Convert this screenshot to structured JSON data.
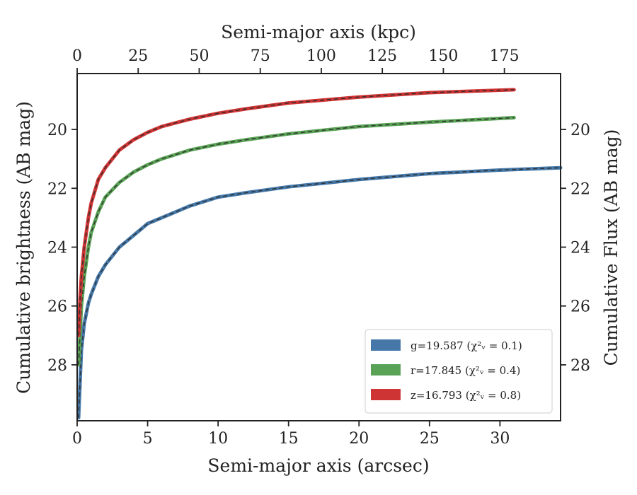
{
  "chart_data": {
    "type": "line",
    "title": "",
    "xlabel": "Semi-major axis (arcsec)",
    "ylabel": "Cumulative brightness (AB mag)",
    "top_xlabel": "Semi-major axis (kpc)",
    "right_ylabel": "Cumulative Flux (AB mag)",
    "xlim": [
      0,
      34.3
    ],
    "ylim": [
      29.9,
      18.1
    ],
    "y_inverted": true,
    "top_xlim": [
      0,
      198
    ],
    "x_ticks": [
      "0",
      "5",
      "10",
      "15",
      "20",
      "25",
      "30"
    ],
    "y_ticks": [
      "20",
      "22",
      "24",
      "26",
      "28"
    ],
    "top_x_ticks": [
      "0",
      "25",
      "50",
      "75",
      "100",
      "125",
      "150",
      "175"
    ],
    "right_y_ticks": [
      "20",
      "22",
      "24",
      "26",
      "28"
    ],
    "grid": false,
    "legend_position": "lower-right",
    "legend": [
      {
        "series": "g",
        "label": "g=19.587 (χ²ᵥ = 0.1)",
        "color": "#4578a8"
      },
      {
        "series": "r",
        "label": "r=17.845 (χ²ᵥ = 0.4)",
        "color": "#5aa356"
      },
      {
        "series": "z",
        "label": "z=16.793 (χ²ᵥ = 0.8)",
        "color": "#cf3434"
      }
    ],
    "series": [
      {
        "name": "g",
        "color": "#4578a8",
        "x": [
          0.1,
          0.3,
          0.5,
          0.8,
          1.0,
          1.5,
          2.0,
          3.0,
          4.0,
          5.0,
          6.0,
          8.0,
          10.0,
          12.0,
          15.0,
          18.0,
          20.0,
          25.0,
          30.0,
          34.3
        ],
        "y": [
          29.8,
          27.5,
          26.6,
          25.9,
          25.6,
          25.0,
          24.6,
          24.0,
          23.6,
          23.2,
          23.0,
          22.6,
          22.3,
          22.15,
          21.95,
          21.8,
          21.7,
          21.5,
          21.38,
          21.3
        ]
      },
      {
        "name": "r",
        "color": "#5aa356",
        "x": [
          0.1,
          0.2,
          0.3,
          0.5,
          0.8,
          1.0,
          1.5,
          2.0,
          3.0,
          4.0,
          5.0,
          6.0,
          8.0,
          10.0,
          12.0,
          15.0,
          20.0,
          25.0,
          31.0
        ],
        "y": [
          28.0,
          27.0,
          26.0,
          25.0,
          24.0,
          23.5,
          22.8,
          22.3,
          21.8,
          21.45,
          21.2,
          21.0,
          20.7,
          20.5,
          20.35,
          20.15,
          19.9,
          19.75,
          19.6
        ]
      },
      {
        "name": "z",
        "color": "#cf3434",
        "x": [
          0.1,
          0.2,
          0.3,
          0.5,
          0.8,
          1.0,
          1.5,
          2.0,
          3.0,
          4.0,
          5.0,
          6.0,
          8.0,
          10.0,
          12.0,
          15.0,
          20.0,
          25.0,
          31.0
        ],
        "y": [
          27.0,
          25.8,
          25.0,
          24.0,
          23.0,
          22.5,
          21.7,
          21.3,
          20.7,
          20.35,
          20.1,
          19.9,
          19.65,
          19.45,
          19.3,
          19.1,
          18.9,
          18.75,
          18.65
        ]
      }
    ]
  }
}
